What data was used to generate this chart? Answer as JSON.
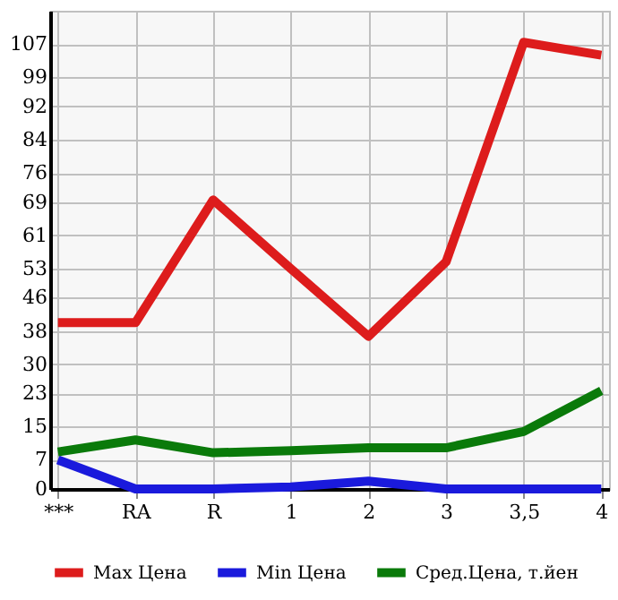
{
  "chart_data": {
    "type": "line",
    "categories": [
      "***",
      "RA",
      "R",
      "1",
      "2",
      "3",
      "3,5",
      "4"
    ],
    "series": [
      {
        "name": "Max Цена",
        "color": "#dd1c1c",
        "values": [
          40,
          40,
          69.5,
          53,
          36.7,
          54.6,
          107.4,
          104.3
        ]
      },
      {
        "name": "Min Цена",
        "color": "#1a1adc",
        "values": [
          7,
          0,
          0,
          0.5,
          1.9,
          0,
          0,
          0
        ]
      },
      {
        "name": "Сред.Цена, т.йен",
        "color": "#0a7a0a",
        "values": [
          8.9,
          11.8,
          8.7,
          9.2,
          9.9,
          9.9,
          13.8,
          23.6
        ]
      }
    ],
    "ylim": [
      0,
      115
    ],
    "yticks": [
      0,
      7,
      15,
      23,
      30,
      38,
      46,
      53,
      61,
      69,
      76,
      84,
      92,
      99,
      107,
      {
        "value": 115,
        "label": null
      }
    ],
    "grid": true,
    "legend": "bottom",
    "marker": "none",
    "line_style": "solid"
  }
}
